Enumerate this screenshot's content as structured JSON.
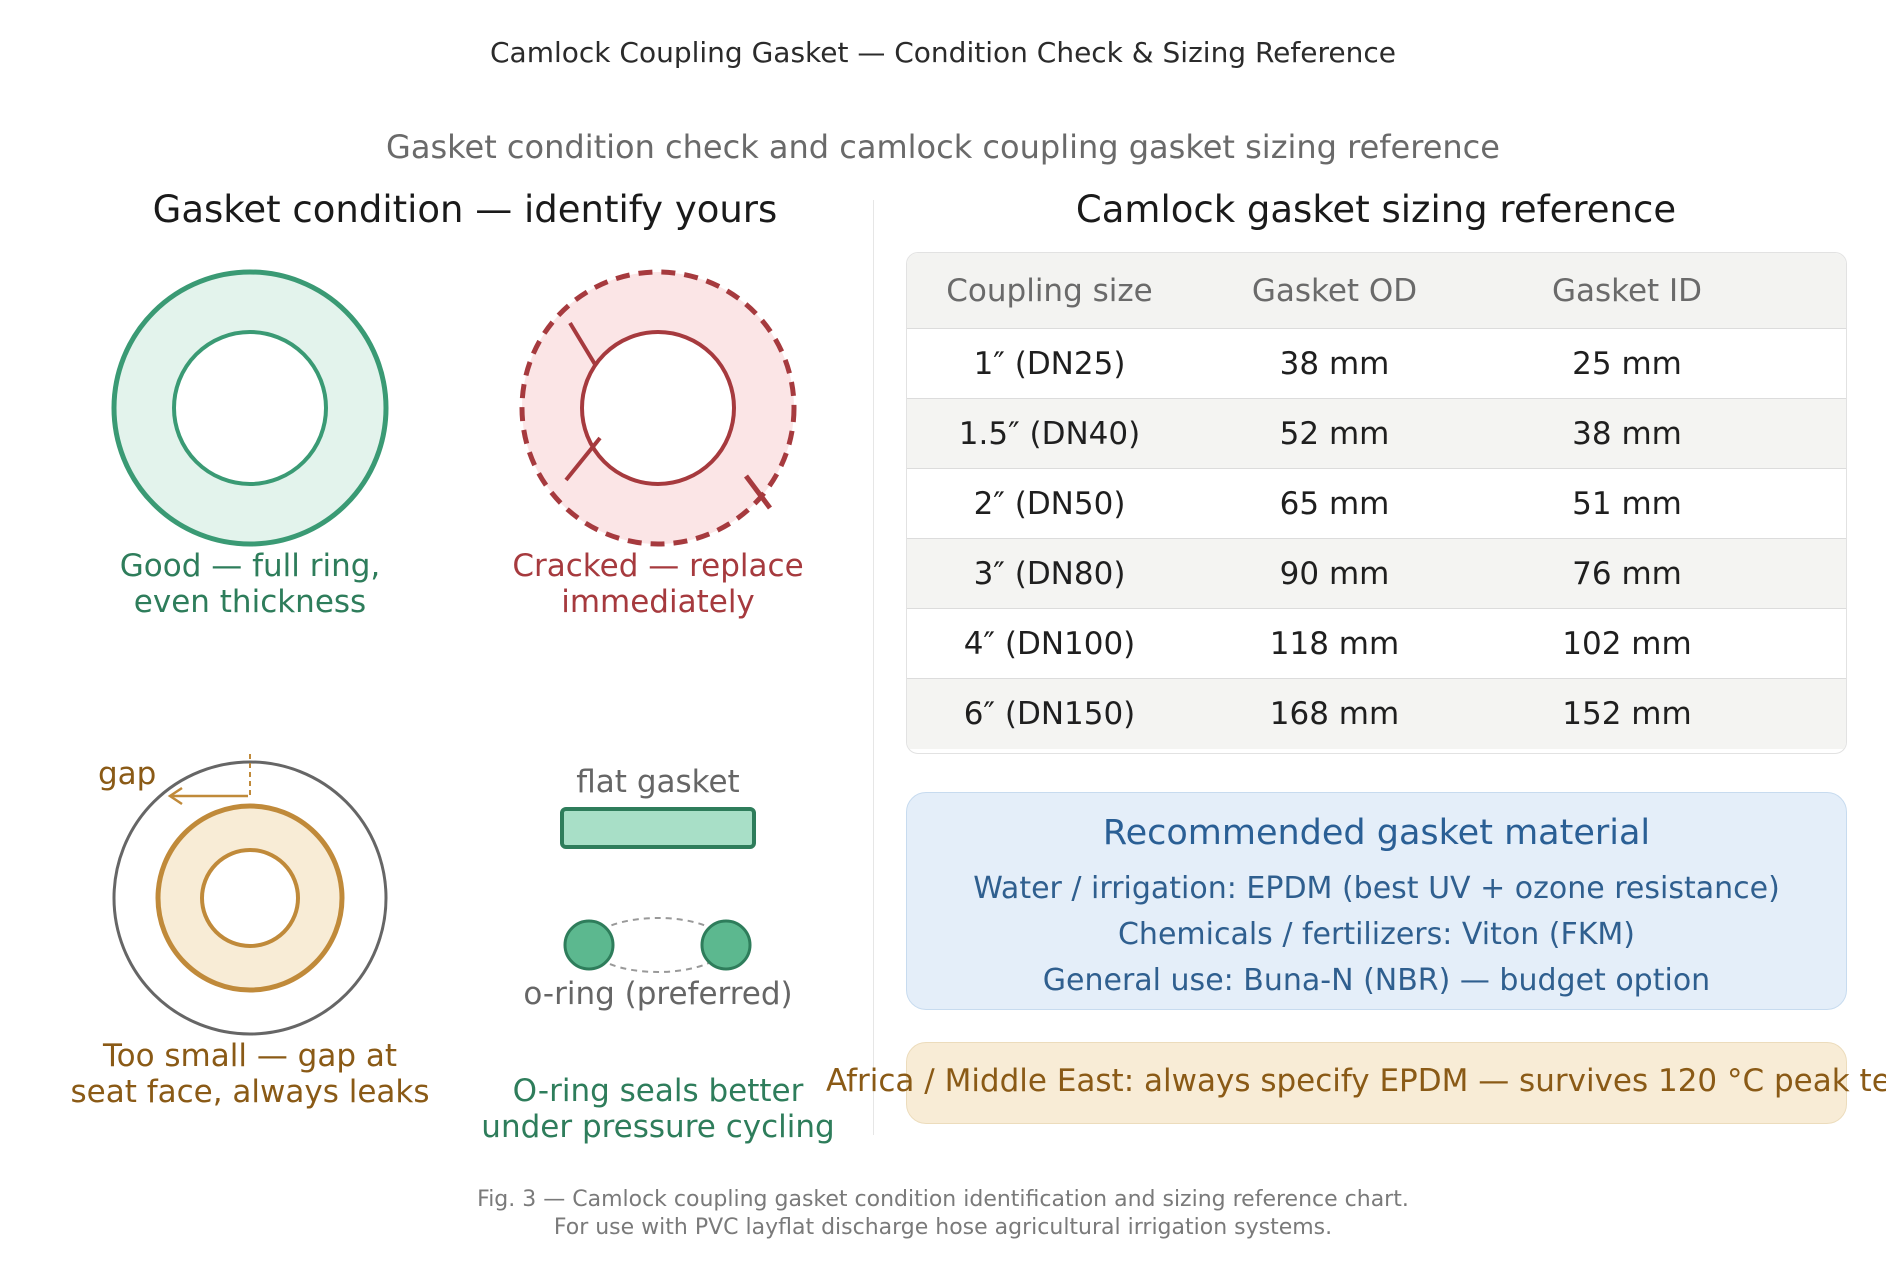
{
  "title": "Camlock Coupling Gasket — Condition Check & Sizing Reference",
  "subtitle": "Gasket condition check and camlock coupling gasket sizing reference",
  "left_panel": {
    "heading": "Gasket condition — identify yours",
    "good": {
      "line1": "Good — full ring,",
      "line2": "even thickness",
      "color": "#2e7d5b"
    },
    "cracked": {
      "line1": "Cracked — replace",
      "line2": "immediately",
      "color": "#a63a3e"
    },
    "too_small": {
      "gap_label": "gap",
      "line1": "Too small — gap at",
      "line2": "seat face, always leaks",
      "color": "#8a5a16"
    },
    "seal_compare": {
      "flat_label": "flat gasket",
      "oring_label": "o-ring (preferred)",
      "line1": "O-ring seals better",
      "line2": "under pressure cycling",
      "color": "#2e7d5b"
    }
  },
  "right_panel": {
    "heading": "Camlock gasket sizing reference",
    "table": {
      "headers": [
        "Coupling size",
        "Gasket OD",
        "Gasket ID"
      ],
      "rows": [
        [
          "1″ (DN25)",
          "38 mm",
          "25 mm"
        ],
        [
          "1.5″ (DN40)",
          "52 mm",
          "38 mm"
        ],
        [
          "2″ (DN50)",
          "65 mm",
          "51 mm"
        ],
        [
          "3″ (DN80)",
          "90 mm",
          "76 mm"
        ],
        [
          "4″ (DN100)",
          "118 mm",
          "102 mm"
        ],
        [
          "6″ (DN150)",
          "168 mm",
          "152 mm"
        ]
      ]
    },
    "material": {
      "title": "Recommended gasket material",
      "lines": [
        "Water / irrigation: EPDM (best UV + ozone resistance)",
        "Chemicals / fertilizers: Viton (FKM)",
        "General use: Buna-N (NBR) — budget option"
      ]
    },
    "note": "Africa / Middle East: always specify EPDM — survives 120 °C peak te"
  },
  "footer": {
    "line1": "Fig. 3 — Camlock coupling gasket condition identification and sizing reference chart.",
    "line2": "For use with PVC layflat discharge hose agricultural irrigation systems."
  }
}
